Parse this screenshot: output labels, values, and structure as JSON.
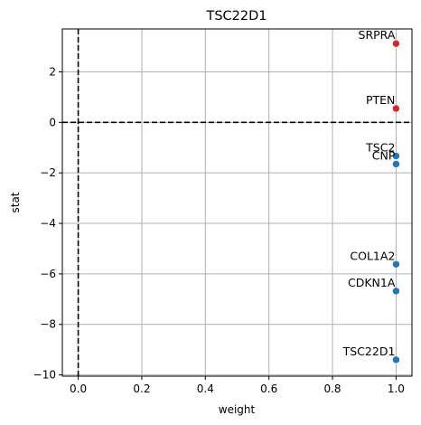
{
  "chart_data": {
    "type": "scatter",
    "title": "TSC22D1",
    "xlabel": "weight",
    "ylabel": "stat",
    "xlim": [
      -0.05,
      1.05
    ],
    "ylim": [
      -10.05,
      3.7
    ],
    "xticks": [
      0.0,
      0.2,
      0.4,
      0.6,
      0.8,
      1.0
    ],
    "xtick_labels": [
      "0.0",
      "0.2",
      "0.4",
      "0.6",
      "0.8",
      "1.0"
    ],
    "yticks": [
      -10,
      -8,
      -6,
      -4,
      -2,
      0,
      2
    ],
    "ytick_labels": [
      "−10",
      "−8",
      "−6",
      "−4",
      "−2",
      "0",
      "2"
    ],
    "grid": true,
    "reference_lines": [
      {
        "orientation": "vertical",
        "value": 0,
        "style": "dashed",
        "color": "#000000"
      },
      {
        "orientation": "horizontal",
        "value": 0,
        "style": "dashed",
        "color": "#000000"
      }
    ],
    "colors": {
      "positive": "#d62728",
      "negative": "#1f77b4",
      "grid": "#b0b0b0"
    },
    "points": [
      {
        "label": "SRPRA",
        "x": 1.0,
        "y": 3.12,
        "sign": "positive"
      },
      {
        "label": "PTEN",
        "x": 1.0,
        "y": 0.55,
        "sign": "positive"
      },
      {
        "label": "TSC2",
        "x": 1.0,
        "y": -1.33,
        "sign": "negative"
      },
      {
        "label": "CNP",
        "x": 1.0,
        "y": -1.65,
        "sign": "negative"
      },
      {
        "label": "COL1A2",
        "x": 1.0,
        "y": -5.62,
        "sign": "negative"
      },
      {
        "label": "CDKN1A",
        "x": 1.0,
        "y": -6.68,
        "sign": "negative"
      },
      {
        "label": "TSC22D1",
        "x": 1.0,
        "y": -9.4,
        "sign": "negative"
      }
    ]
  }
}
